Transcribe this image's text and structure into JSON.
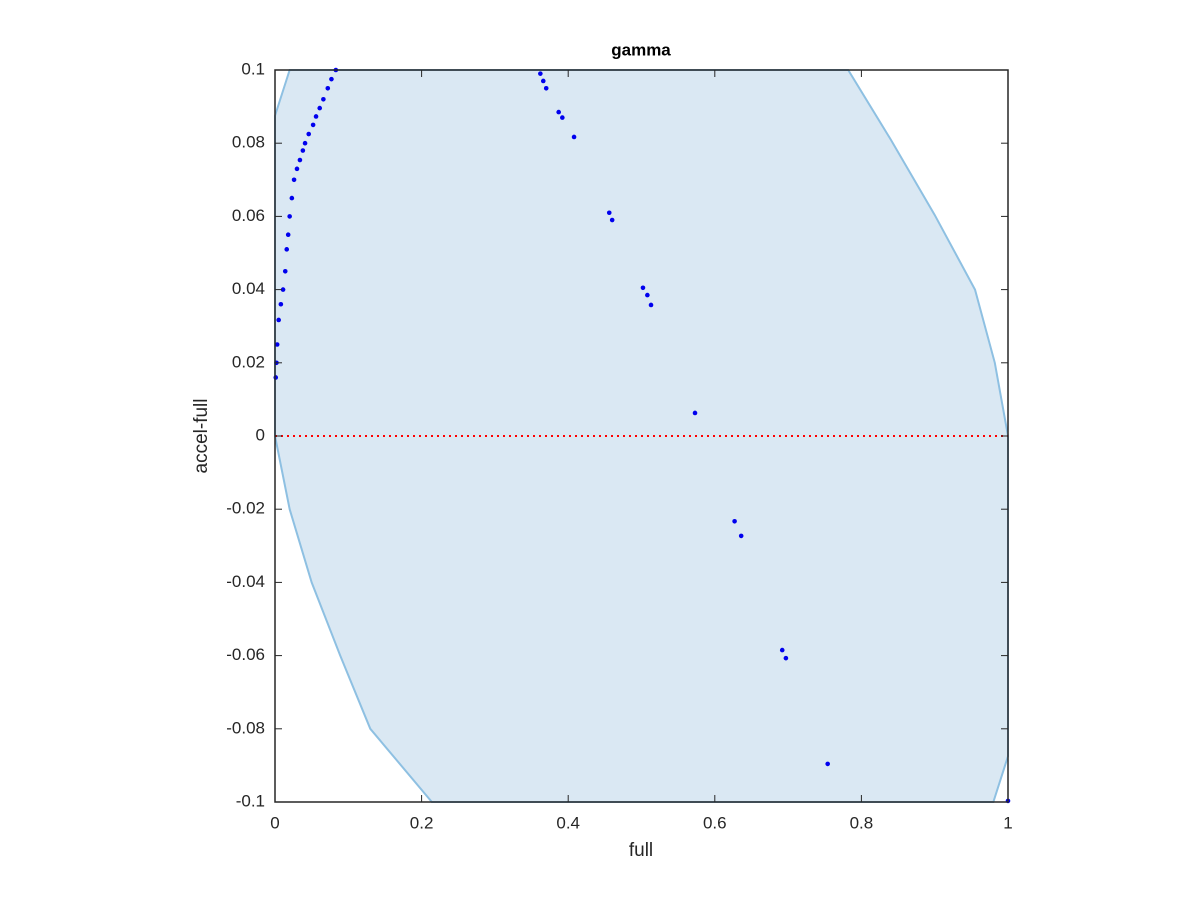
{
  "chart_data": {
    "type": "scatter",
    "title": "gamma",
    "x_label": "full",
    "y_label": "accel-full",
    "xlim": [
      0,
      1
    ],
    "ylim": [
      -0.1,
      0.1
    ],
    "xticks": [
      0,
      0.2,
      0.4,
      0.6,
      0.8,
      1
    ],
    "yticks": [
      -0.1,
      -0.08,
      -0.06,
      -0.04,
      -0.02,
      0,
      0.02,
      0.04,
      0.06,
      0.08,
      0.1
    ],
    "region": {
      "color": "#dae8f3",
      "edge_color": "#8ec0e2",
      "x": [
        0,
        0.02,
        0.782,
        0.84,
        0.9,
        0.955,
        0.982,
        1,
        1,
        0.98,
        0.214,
        0.13,
        0.089,
        0.05,
        0.02,
        0
      ],
      "y": [
        0.0875,
        0.1,
        0.1,
        0.081,
        0.0604,
        0.04,
        0.02,
        0,
        -0.0875,
        -0.1,
        -0.1,
        -0.08,
        -0.06,
        -0.04,
        -0.02,
        0
      ]
    },
    "reference_line": {
      "y": 0,
      "color": "#ff0000"
    },
    "series": [
      {
        "color": "#0000ee",
        "x": [
          0.001,
          0.002,
          0.003,
          0.005,
          0.008,
          0.011,
          0.014,
          0.016,
          0.018,
          0.02,
          0.023,
          0.026,
          0.03,
          0.034,
          0.038,
          0.041,
          0.046,
          0.052,
          0.056,
          0.061,
          0.066,
          0.072,
          0.077,
          0.083,
          0.362,
          0.366,
          0.37,
          0.387,
          0.392,
          0.408,
          0.456,
          0.46,
          0.502,
          0.508,
          0.513,
          0.573,
          0.627,
          0.636,
          0.692,
          0.697,
          0.754,
          1
        ],
        "y": [
          0.016,
          0.02,
          0.025,
          0.0317,
          0.036,
          0.04,
          0.045,
          0.051,
          0.055,
          0.06,
          0.065,
          0.07,
          0.073,
          0.0754,
          0.078,
          0.08,
          0.0825,
          0.085,
          0.0873,
          0.0896,
          0.092,
          0.095,
          0.0975,
          0.1,
          0.099,
          0.097,
          0.095,
          0.0885,
          0.087,
          0.0817,
          0.061,
          0.059,
          0.0405,
          0.0385,
          0.0358,
          0.0063,
          -0.0233,
          -0.0273,
          -0.0585,
          -0.0607,
          -0.0896,
          -0.0997
        ]
      }
    ]
  }
}
